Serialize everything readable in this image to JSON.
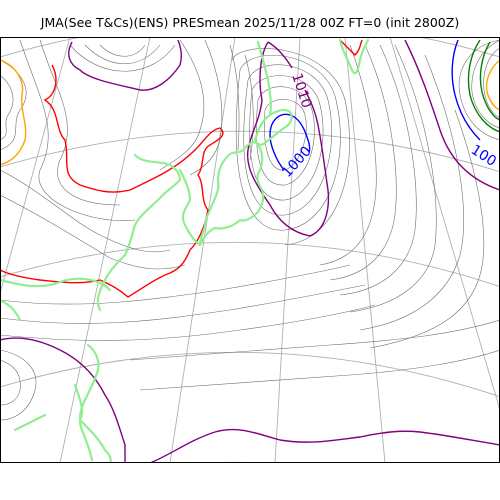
{
  "title": "JMA(See T&Cs)(ENS) PRESmean 2025/11/28 00Z FT=0 (init 2800Z)",
  "contour_labels": [
    {
      "text": "1010",
      "color": "#800080"
    },
    {
      "text": "1000",
      "color": "#0000ff"
    },
    {
      "text": "100",
      "color": "#0000ff"
    }
  ],
  "colors": {
    "coastline": "#90ee90",
    "isobar": "#6e6e6e",
    "graticule": "#b0b0b0",
    "contour_1020": "#ff0000",
    "contour_1010": "#800080",
    "contour_1000": "#0000ff",
    "contour_990": "#008000",
    "contour_1030": "#ffa500"
  }
}
